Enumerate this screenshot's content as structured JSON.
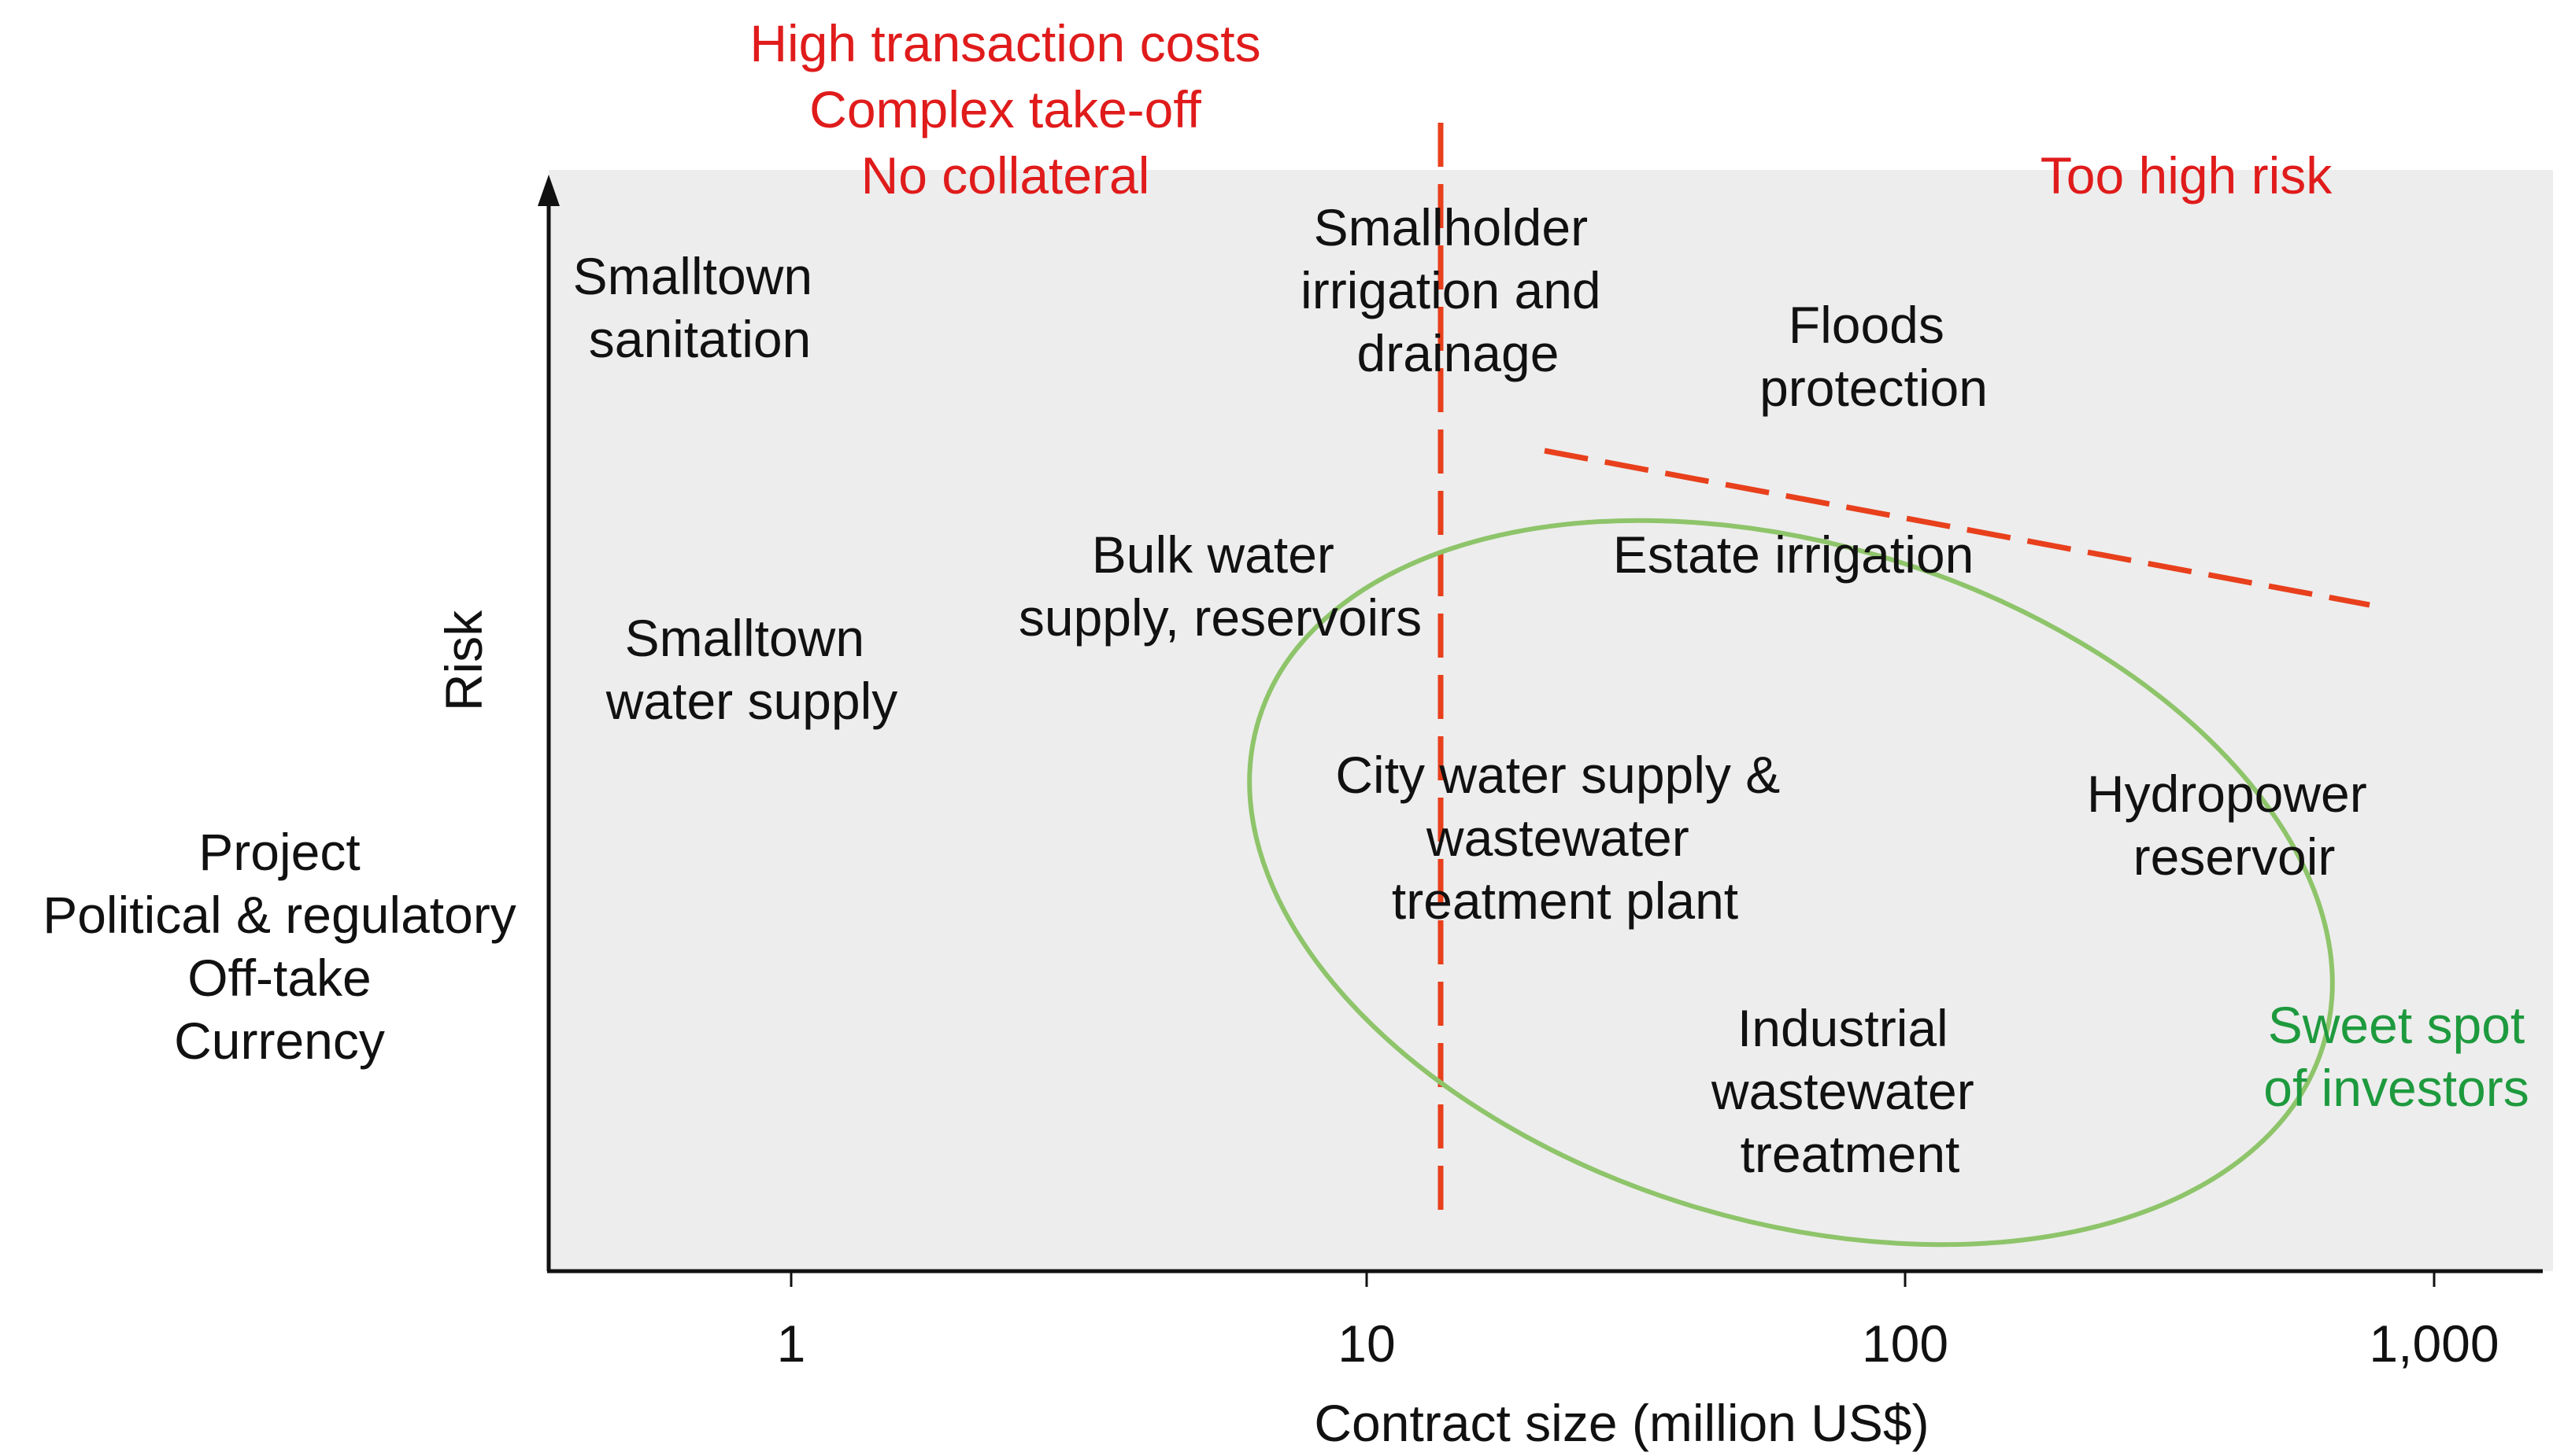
{
  "colors": {
    "background_panel": "#ededed",
    "axis": "#111111",
    "text": "#111111",
    "constraint_red": "#e01b1b",
    "threshold_line_red": "#e8401c",
    "sweet_spot_ellipse": "#8ec46a",
    "sweet_spot_text": "#1e9a3e"
  },
  "axes": {
    "x_label": "Contract size (million US$)",
    "x_scale": "log",
    "x_ticks": [
      "1",
      "10",
      "100",
      "1,000"
    ],
    "y_label": "Risk",
    "y_factors": [
      "Project",
      "Political & regulatory",
      "Off-take",
      "Currency"
    ]
  },
  "annotations": {
    "left_constraints": [
      "High transaction costs",
      "Complex take-off",
      "No collateral"
    ],
    "top_right_constraint": "Too high risk",
    "sweet_spot": [
      "Sweet spot",
      "of investors"
    ]
  },
  "projects": [
    {
      "key": "smalltown-sanitation",
      "lines": [
        "Smalltown",
        "sanitation"
      ]
    },
    {
      "key": "smalltown-water-supply",
      "lines": [
        "Smalltown",
        "water supply"
      ]
    },
    {
      "key": "bulk-water-supply",
      "lines": [
        "Bulk water",
        "supply, reservoirs"
      ]
    },
    {
      "key": "smallholder-irrigation",
      "lines": [
        "Smallholder",
        "irrigation and",
        "drainage"
      ]
    },
    {
      "key": "floods-protection",
      "lines": [
        "Floods",
        "protection"
      ]
    },
    {
      "key": "estate-irrigation",
      "lines": [
        "Estate irrigation"
      ]
    },
    {
      "key": "city-water-supply",
      "lines": [
        "City water supply &",
        "wastewater",
        "treatment plant"
      ]
    },
    {
      "key": "hydropower-reservoir",
      "lines": [
        "Hydropower",
        "reservoir"
      ]
    },
    {
      "key": "industrial-wastewater",
      "lines": [
        "Industrial",
        "wastewater",
        "treatment"
      ]
    }
  ]
}
